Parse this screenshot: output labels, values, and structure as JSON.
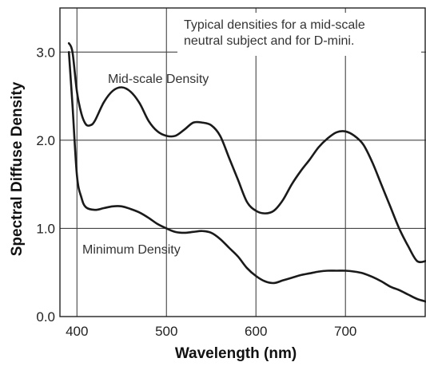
{
  "chart_data": {
    "type": "line",
    "title": "",
    "xlabel": "Wavelength (nm)",
    "ylabel": "Spectral Diffuse Density",
    "xlim": [
      381,
      790
    ],
    "ylim": [
      0.0,
      3.5
    ],
    "xticks": [
      400,
      500,
      600,
      700
    ],
    "xtick_labels": [
      "400",
      "500",
      "600",
      "700"
    ],
    "yticks": [
      0.0,
      1.0,
      2.0,
      3.0
    ],
    "ytick_labels": [
      "0.0",
      "1.0",
      "2.0",
      "3.0"
    ],
    "grid": true,
    "annotations": [
      "Typical densities for a mid-scale",
      "neutral subject and for D-mini."
    ],
    "series": [
      {
        "name": "Mid-scale Density",
        "color": "#1a1a1a",
        "x": [
          391,
          395,
          400,
          405,
          410,
          415,
          420,
          430,
          440,
          450,
          460,
          470,
          480,
          490,
          500,
          510,
          520,
          530,
          540,
          550,
          560,
          570,
          580,
          590,
          600,
          610,
          620,
          630,
          640,
          650,
          660,
          670,
          680,
          690,
          700,
          710,
          720,
          730,
          740,
          750,
          760,
          770,
          780,
          790
        ],
        "y": [
          3.1,
          3.0,
          2.55,
          2.3,
          2.18,
          2.17,
          2.22,
          2.43,
          2.56,
          2.6,
          2.55,
          2.42,
          2.22,
          2.1,
          2.05,
          2.05,
          2.12,
          2.2,
          2.2,
          2.17,
          2.05,
          1.8,
          1.55,
          1.3,
          1.2,
          1.17,
          1.2,
          1.32,
          1.5,
          1.65,
          1.78,
          1.92,
          2.02,
          2.09,
          2.1,
          2.05,
          1.95,
          1.75,
          1.5,
          1.25,
          1.0,
          0.8,
          0.63,
          0.63
        ]
      },
      {
        "name": "Minimum Density",
        "color": "#1a1a1a",
        "x": [
          391,
          395,
          400,
          405,
          410,
          420,
          430,
          440,
          450,
          460,
          470,
          480,
          490,
          500,
          510,
          520,
          530,
          540,
          550,
          560,
          570,
          580,
          590,
          600,
          610,
          620,
          630,
          640,
          650,
          660,
          670,
          680,
          690,
          700,
          710,
          720,
          730,
          740,
          750,
          760,
          770,
          780,
          790
        ],
        "y": [
          3.0,
          2.4,
          1.6,
          1.35,
          1.24,
          1.21,
          1.23,
          1.25,
          1.25,
          1.22,
          1.18,
          1.12,
          1.05,
          1.0,
          0.96,
          0.95,
          0.96,
          0.97,
          0.95,
          0.88,
          0.78,
          0.68,
          0.55,
          0.46,
          0.4,
          0.38,
          0.41,
          0.44,
          0.47,
          0.49,
          0.51,
          0.52,
          0.52,
          0.52,
          0.51,
          0.49,
          0.45,
          0.4,
          0.34,
          0.3,
          0.25,
          0.2,
          0.17
        ]
      }
    ]
  }
}
